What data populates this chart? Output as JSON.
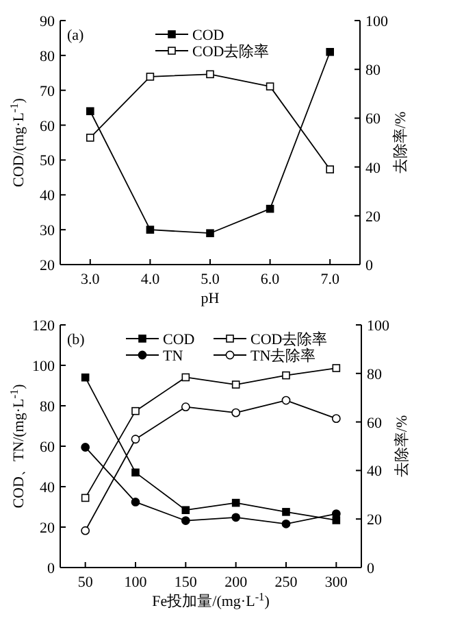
{
  "chart_data": [
    {
      "type": "line",
      "xlabel": "pH",
      "ylabel": "COD/(mg·L$^{-1}$)",
      "y2label": "去除率/%",
      "annotations": [
        "(a)"
      ],
      "x": [
        3,
        4,
        5,
        6,
        7
      ],
      "xlim": [
        2.5,
        7.5
      ],
      "xticks": [
        {
          "value": 3,
          "label": "3.0"
        },
        {
          "value": 4,
          "label": "4.0"
        },
        {
          "value": 5,
          "label": "5.0"
        },
        {
          "value": 6,
          "label": "6.0"
        },
        {
          "value": 7,
          "label": "7.0"
        }
      ],
      "ylim": [
        20,
        90
      ],
      "yticks": [
        20,
        30,
        40,
        50,
        60,
        70,
        80,
        90
      ],
      "y2lim": [
        0,
        100
      ],
      "y2ticks": [
        0,
        20,
        40,
        60,
        80,
        100
      ],
      "legend": "top",
      "grid": false,
      "series": [
        {
          "name": "COD",
          "color": "#000000",
          "marker": "square",
          "values": [
            64,
            30,
            29,
            36,
            81
          ]
        },
        {
          "name": "COD去除率",
          "color": "#000000",
          "marker": "square",
          "axis": "y2",
          "values": [
            52,
            77,
            78,
            73,
            39
          ]
        }
      ]
    },
    {
      "type": "line",
      "xlabel": "Fe投加量/(mg·L$^{-1}$)",
      "ylabel": "COD、TN/(mg·L$^{-1}$)",
      "y2label": "去除率/%",
      "annotations": [
        "(b)"
      ],
      "x": [
        50,
        100,
        150,
        200,
        250,
        300
      ],
      "xlim": [
        25,
        325
      ],
      "xticks": [
        50,
        100,
        150,
        200,
        250,
        300
      ],
      "ylim": [
        0,
        120
      ],
      "yticks": [
        0,
        20,
        40,
        60,
        80,
        100,
        120
      ],
      "y2lim": [
        0,
        100
      ],
      "y2ticks": [
        0,
        20,
        40,
        60,
        80,
        100
      ],
      "legend": "top",
      "grid": false,
      "series": [
        {
          "name": "COD",
          "color": "#000000",
          "marker": "square",
          "values": [
            94,
            47,
            28.4,
            32,
            27.5,
            23.4
          ]
        },
        {
          "name": "COD去除率",
          "color": "#000000",
          "marker": "square",
          "axis": "y2",
          "values": [
            28.7,
            64.5,
            78.4,
            75.4,
            79.2,
            82.2
          ]
        },
        {
          "name": "TN",
          "color": "#000000",
          "marker": "circle",
          "values": [
            59.5,
            32.4,
            23.2,
            24.8,
            21.6,
            26.6
          ]
        },
        {
          "name": "TN去除率",
          "color": "#000000",
          "marker": "circle",
          "axis": "y2",
          "values": [
            15.2,
            52.9,
            66.2,
            63.8,
            68.9,
            61.4
          ]
        }
      ]
    }
  ]
}
